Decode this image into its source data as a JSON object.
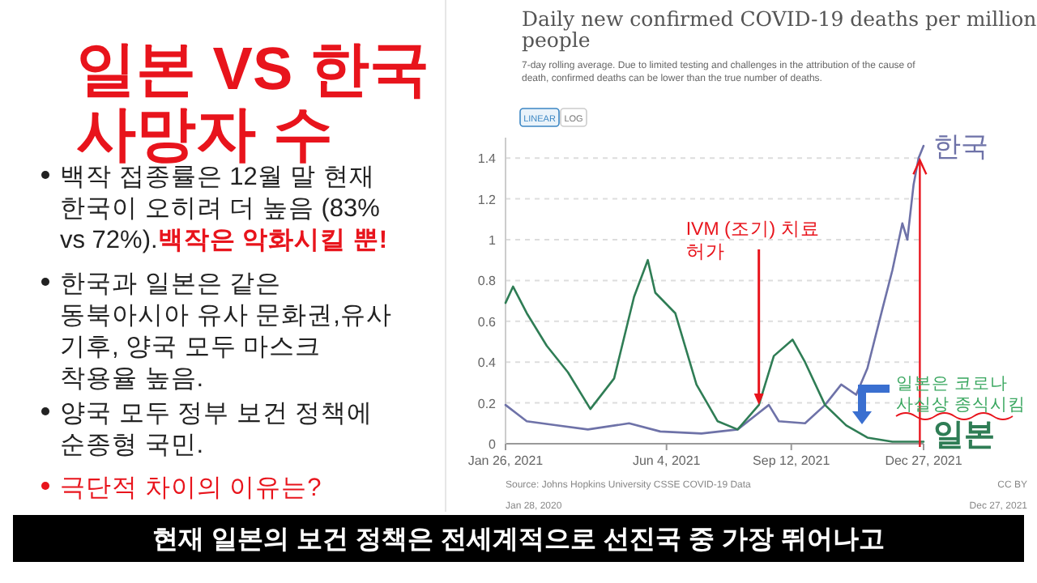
{
  "chart_data": {
    "type": "line",
    "title": "Daily new confirmed COVID-19 deaths per million people",
    "subtitle": "7-day rolling average. Due to limited testing and challenges in the attribution of the cause of death, confirmed deaths can be lower than the true number of deaths.",
    "xlim": [
      "2021-01-26",
      "2021-12-27"
    ],
    "xticks": [
      {
        "value": "2021-01-26",
        "label": "Jan 26, 2021"
      },
      {
        "value": "2021-06-04",
        "label": "Jun 4, 2021"
      },
      {
        "value": "2021-09-12",
        "label": "Sep 12, 2021"
      },
      {
        "value": "2021-12-27",
        "label": "Dec 27, 2021"
      }
    ],
    "ylim": [
      0,
      1.5
    ],
    "yticks": [
      0,
      0.2,
      0.4,
      0.6,
      0.8,
      1,
      1.2,
      1.4
    ],
    "grid": "y",
    "legend": false,
    "marker": "none",
    "line_style": "solid",
    "series": [
      {
        "name": "한국",
        "color": "#6e72a8",
        "x": [
          "2021-01-26",
          "2021-02-12",
          "2021-03-08",
          "2021-04-02",
          "2021-05-05",
          "2021-05-30",
          "2021-07-02",
          "2021-07-31",
          "2021-08-25",
          "2021-09-02",
          "2021-09-23",
          "2021-10-09",
          "2021-10-22",
          "2021-11-03",
          "2021-11-12",
          "2021-11-24",
          "2021-12-02",
          "2021-12-10",
          "2021-12-14",
          "2021-12-19",
          "2021-12-23",
          "2021-12-27"
        ],
        "values": [
          0.19,
          0.11,
          0.09,
          0.07,
          0.1,
          0.06,
          0.05,
          0.07,
          0.19,
          0.11,
          0.1,
          0.19,
          0.29,
          0.24,
          0.37,
          0.66,
          0.85,
          1.08,
          1.0,
          1.27,
          1.4,
          1.46
        ]
      },
      {
        "name": "일본",
        "color": "#2f7d55",
        "x": [
          "2021-01-26",
          "2021-02-01",
          "2021-02-12",
          "2021-02-28",
          "2021-03-17",
          "2021-04-04",
          "2021-04-23",
          "2021-05-09",
          "2021-05-20",
          "2021-05-26",
          "2021-06-11",
          "2021-06-28",
          "2021-07-15",
          "2021-07-31",
          "2021-08-17",
          "2021-08-29",
          "2021-09-13",
          "2021-09-23",
          "2021-10-09",
          "2021-10-26",
          "2021-11-12",
          "2021-12-02",
          "2021-12-27"
        ],
        "values": [
          0.69,
          0.77,
          0.64,
          0.48,
          0.35,
          0.17,
          0.32,
          0.72,
          0.9,
          0.74,
          0.64,
          0.29,
          0.11,
          0.07,
          0.19,
          0.43,
          0.51,
          0.4,
          0.19,
          0.09,
          0.03,
          0.01,
          0.01
        ]
      }
    ],
    "annotations": [
      {
        "text": "IVM (조기) 치료\n허가",
        "x": "2021-08-17",
        "y": 0.19
      },
      "일본은 코로나\n사실상 종식시킴",
      "Source: Johns Hopkins University CSSE COVID-19 Data",
      "CC BY",
      "Jan 28, 2020",
      "Dec 27, 2021",
      "LINEAR",
      "LOG",
      "현재 일본의 보건 정책은 전세계적으로 선진국 중 가장 뛰어나고",
      "일본 VS 한국\n사망자 수",
      "백작 접종률은 12월 말 현재\n한국이 오히려 더 높음 (83%\nvs 72%).",
      "백작은 악화시킬 뿐!",
      "한국과 일본은 같은\n동북아시아 유사 문화권,유사\n기후, 양국 모두 마스크\n착용율 높음.",
      "양국 모두 정부 보건 정책에\n순종형 국민.",
      "극단적 차이의 이유는?"
    ]
  }
}
